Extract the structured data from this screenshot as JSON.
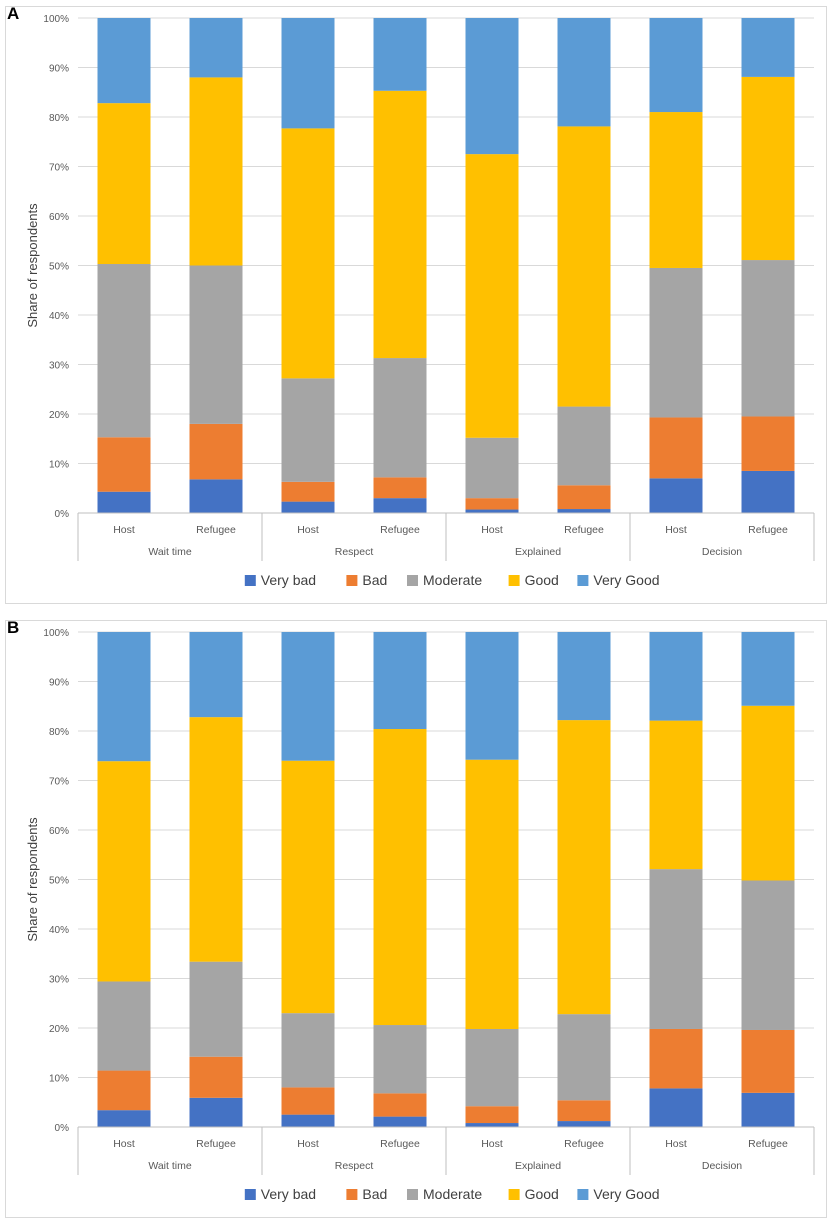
{
  "chart_data": [
    {
      "panel_label": "A",
      "type": "bar",
      "stacked": true,
      "ylabel": "Share of respondents",
      "ylim": [
        0,
        100
      ],
      "y_ticks": [
        "0%",
        "10%",
        "20%",
        "30%",
        "40%",
        "50%",
        "60%",
        "70%",
        "80%",
        "90%",
        "100%"
      ],
      "groups": [
        "Wait time",
        "Respect",
        "Explained",
        "Decision"
      ],
      "categories": [
        "Host",
        "Refugee",
        "Host",
        "Refugee",
        "Host",
        "Refugee",
        "Host",
        "Refugee"
      ],
      "series": [
        {
          "name": "Very bad",
          "color": "#4472C4",
          "values": [
            4.3,
            6.8,
            2.3,
            3.0,
            0.7,
            0.8,
            7.0,
            8.5
          ]
        },
        {
          "name": "Bad",
          "color": "#ED7D31",
          "values": [
            11.0,
            11.2,
            4.0,
            4.2,
            2.3,
            4.8,
            12.3,
            11.0
          ]
        },
        {
          "name": "Moderate",
          "color": "#A5A5A5",
          "values": [
            35.0,
            32.0,
            20.9,
            24.1,
            12.2,
            15.9,
            30.2,
            31.6
          ]
        },
        {
          "name": "Good",
          "color": "#FFC000",
          "values": [
            32.5,
            38.0,
            50.5,
            54.0,
            57.3,
            56.6,
            31.5,
            37.0
          ]
        },
        {
          "name": "Very Good",
          "color": "#5B9BD5",
          "values": [
            17.2,
            12.0,
            22.3,
            14.7,
            27.5,
            21.9,
            19.0,
            11.9
          ]
        }
      ],
      "legend_position": "bottom"
    },
    {
      "panel_label": "B",
      "type": "bar",
      "stacked": true,
      "ylabel": "Share of respondents",
      "ylim": [
        0,
        100
      ],
      "y_ticks": [
        "0%",
        "10%",
        "20%",
        "30%",
        "40%",
        "50%",
        "60%",
        "70%",
        "80%",
        "90%",
        "100%"
      ],
      "groups": [
        "Wait time",
        "Respect",
        "Explained",
        "Decision"
      ],
      "categories": [
        "Host",
        "Refugee",
        "Host",
        "Refugee",
        "Host",
        "Refugee",
        "Host",
        "Refugee"
      ],
      "series": [
        {
          "name": "Very bad",
          "color": "#4472C4",
          "values": [
            3.4,
            5.9,
            2.5,
            2.1,
            0.8,
            1.2,
            7.8,
            6.9
          ]
        },
        {
          "name": "Bad",
          "color": "#ED7D31",
          "values": [
            8.0,
            8.3,
            5.5,
            4.7,
            3.4,
            4.2,
            12.0,
            12.7
          ]
        },
        {
          "name": "Moderate",
          "color": "#A5A5A5",
          "values": [
            18.0,
            19.2,
            15.0,
            13.8,
            15.6,
            17.4,
            32.3,
            30.2
          ]
        },
        {
          "name": "Good",
          "color": "#FFC000",
          "values": [
            44.5,
            49.4,
            51.0,
            59.8,
            54.4,
            59.4,
            30.0,
            35.3
          ]
        },
        {
          "name": "Very Good",
          "color": "#5B9BD5",
          "values": [
            26.1,
            17.2,
            26.0,
            19.6,
            25.8,
            17.8,
            17.9,
            14.9
          ]
        }
      ],
      "legend_position": "bottom"
    }
  ]
}
